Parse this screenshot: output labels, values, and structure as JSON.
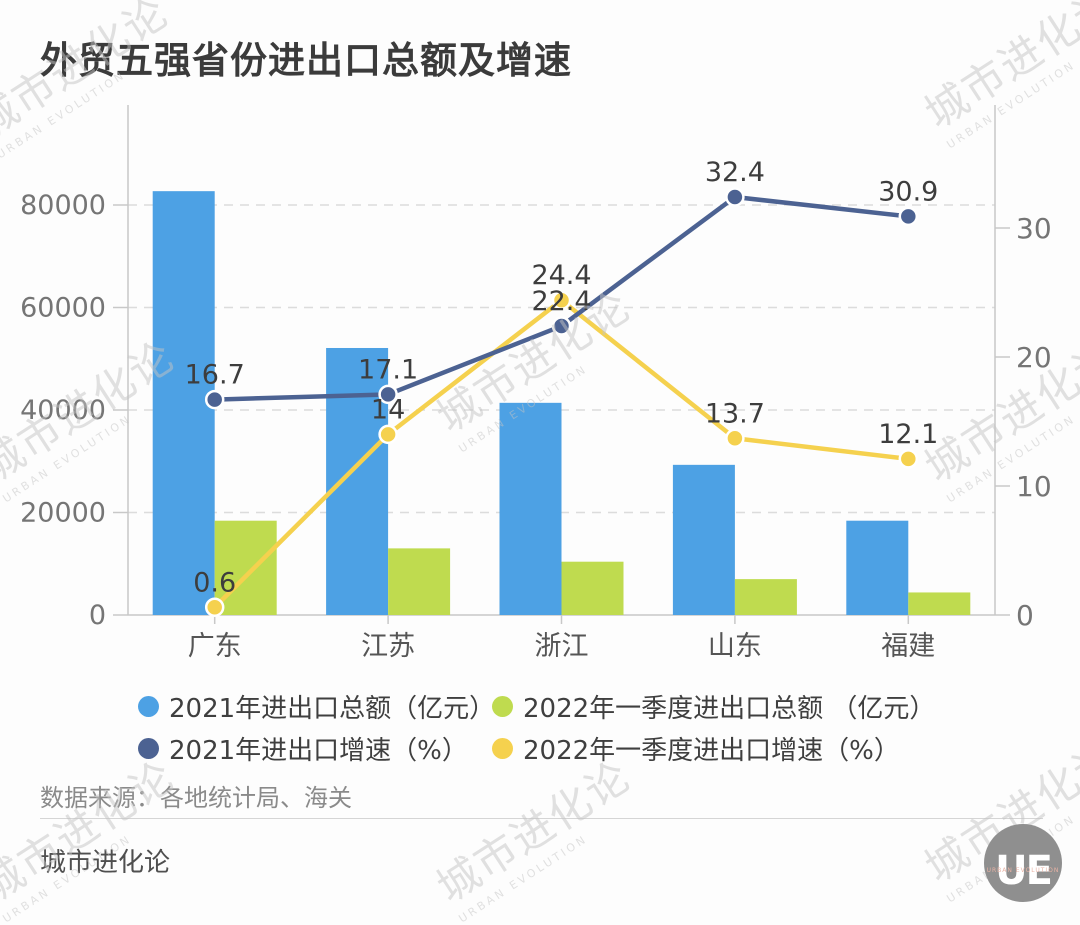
{
  "header": {
    "title": "外贸五强省份进出口总额及增速"
  },
  "chart_data": {
    "type": "bar",
    "title": "外贸五强省份进出口总额及增速",
    "categories": [
      "广东",
      "江苏",
      "浙江",
      "山东",
      "福建"
    ],
    "series": [
      {
        "name": "2021年进出口总额（亿元）",
        "type": "bar",
        "axis": "left",
        "color": "#4DA1E4",
        "values": [
          82700,
          52100,
          41400,
          29300,
          18400
        ]
      },
      {
        "name": "2022年一季度进出口总额（亿元）",
        "type": "bar",
        "axis": "left",
        "color": "#BFDB4F",
        "values": [
          18400,
          13000,
          10400,
          7000,
          4400
        ]
      },
      {
        "name": "2021年进出口增速（%）",
        "type": "line",
        "axis": "right",
        "color": "#4C6292",
        "values": [
          16.7,
          17.1,
          22.4,
          32.4,
          30.9
        ]
      },
      {
        "name": "2022年一季度进出口增速（%）",
        "type": "line",
        "axis": "right",
        "color": "#F5D14E",
        "values": [
          0.6,
          14,
          24.4,
          13.7,
          12.1
        ]
      }
    ],
    "left_axis": {
      "ticks": [
        0,
        20000,
        40000,
        60000,
        80000
      ],
      "max": 80000
    },
    "right_axis": {
      "ticks": [
        0,
        10,
        20,
        30
      ],
      "max": 32.5
    },
    "grid": "dashed-horizontal",
    "legend_position": "bottom"
  },
  "legend": {
    "items": [
      {
        "label": "2021年进出口总额（亿元）",
        "color": "#4DA1E4"
      },
      {
        "label": "2022年一季度进出口总额 （亿元）",
        "color": "#BFDB4F"
      },
      {
        "label": "2021年进出口增速（%）",
        "color": "#4C6292"
      },
      {
        "label": "2022年一季度进出口增速（%）",
        "color": "#F5D14E"
      }
    ]
  },
  "footer": {
    "source": "数据来源：各地统计局、海关",
    "brand": "城市进化论"
  },
  "logo": {
    "text": "UE",
    "subtext": "URBAN EVOLUTION"
  },
  "watermark": {
    "line1": "城市进化论",
    "line2": "URBAN EVOLUTION"
  },
  "colors": {
    "bar_2021": "#4DA1E4",
    "bar_2022q1": "#BFDB4F",
    "line_2021": "#4C6292",
    "line_2022q1": "#F5D14E",
    "axis": "#c8c8c8",
    "grid": "#dcdcdc",
    "tick_label": "#757575",
    "value_label": "#3d3d3d"
  }
}
